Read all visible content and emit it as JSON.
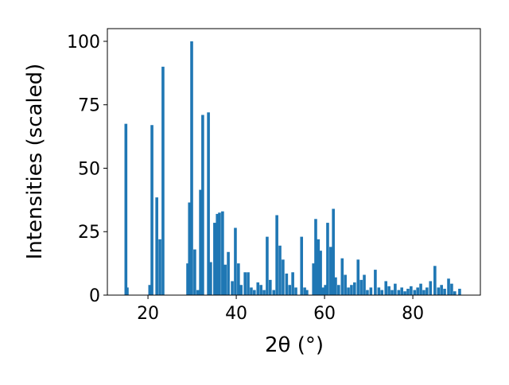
{
  "chart_data": {
    "type": "bar",
    "color": "#1f77b4",
    "xlabel": "2θ (°)",
    "ylabel": "Intensities (scaled)",
    "x": [
      15.0,
      15.3,
      20.4,
      20.9,
      22.0,
      22.7,
      23.4,
      29.0,
      29.4,
      29.9,
      30.6,
      31.3,
      31.9,
      32.4,
      33.7,
      34.2,
      35.1,
      35.7,
      36.2,
      36.9,
      37.5,
      38.2,
      39.1,
      39.8,
      40.5,
      41.1,
      42.0,
      42.7,
      43.4,
      44.1,
      44.9,
      45.6,
      46.3,
      47.0,
      47.7,
      48.5,
      49.2,
      49.9,
      50.6,
      51.4,
      52.1,
      52.8,
      53.5,
      54.8,
      55.5,
      56.0,
      57.5,
      58.0,
      58.6,
      59.1,
      59.6,
      60.2,
      60.7,
      61.4,
      62.0,
      62.5,
      63.2,
      64.0,
      64.7,
      65.4,
      66.1,
      66.8,
      67.6,
      68.3,
      69.0,
      69.7,
      70.5,
      71.5,
      72.3,
      73.0,
      73.9,
      74.6,
      75.3,
      76.0,
      76.8,
      77.5,
      78.2,
      78.9,
      79.6,
      80.4,
      81.1,
      81.8,
      82.5,
      83.2,
      84.0,
      85.0,
      85.8,
      86.5,
      87.2,
      88.1,
      88.8,
      89.5,
      90.6
    ],
    "values": [
      67.5,
      3,
      4,
      67,
      38.5,
      22,
      90,
      12.5,
      36.5,
      100,
      18,
      2,
      41.5,
      71,
      72,
      13,
      28.5,
      32,
      32.5,
      33,
      12,
      17,
      5.5,
      26.5,
      12.5,
      4,
      9,
      9,
      3,
      2,
      5,
      4,
      2,
      23,
      6,
      2,
      31.5,
      19.5,
      14,
      8.5,
      4,
      9,
      3,
      23,
      3,
      2,
      12.5,
      30,
      22,
      17.5,
      3,
      4,
      28.5,
      19,
      34,
      7,
      4,
      14.5,
      8,
      3,
      4,
      5,
      14,
      6,
      8,
      2,
      3,
      10,
      3,
      2,
      5.5,
      3.5,
      2,
      4.5,
      2,
      3,
      1.5,
      2.5,
      3.5,
      2,
      3,
      4.5,
      2,
      3,
      5.5,
      11.5,
      3,
      4,
      2.5,
      6.5,
      4.5,
      1.5,
      2.5
    ],
    "xlim": [
      10.8,
      95.3
    ],
    "ylim": [
      0,
      105
    ],
    "xticks": [
      20,
      40,
      60,
      80
    ],
    "yticks": [
      0,
      25,
      50,
      75,
      100
    ]
  }
}
